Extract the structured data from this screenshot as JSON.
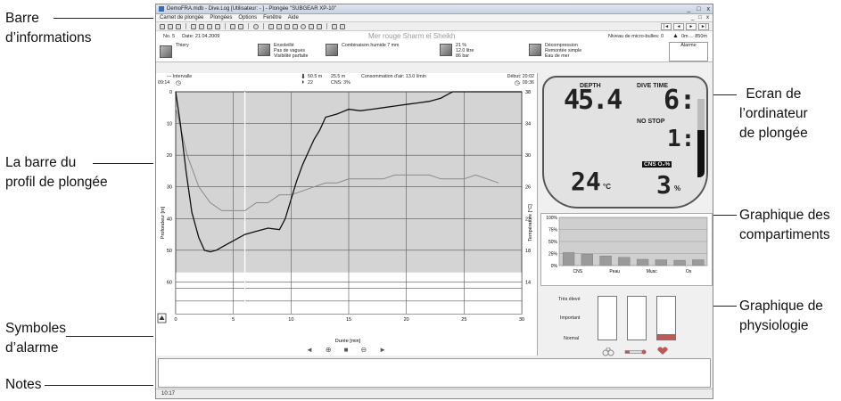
{
  "callouts": {
    "info_bar": [
      "Barre",
      "d’informations"
    ],
    "profile_bar": [
      "La barre du",
      "profil de plongée"
    ],
    "alarm_symbols": [
      "Symboles",
      "d’alarme"
    ],
    "notes": "Notes",
    "dive_computer": [
      "Ecran de",
      "l’ordinateur",
      "de plongée"
    ],
    "compartments": [
      "Graphique des",
      "compartiments"
    ],
    "physiology": [
      "Graphique de",
      "physiologie"
    ]
  },
  "window": {
    "title": "DemoFRA.mdb - Dive.Log [Utilisateur: - ] - Plongée \"SUBGEAR XP-10\"",
    "controls": [
      "_",
      "□",
      "x"
    ]
  },
  "menu": {
    "items": [
      "Carnet de plongée",
      "Plongées",
      "Options",
      "Fenêtre",
      "Aide"
    ],
    "mdi_controls": [
      "_",
      "□",
      "x"
    ]
  },
  "toolbar": {
    "nav_buttons": [
      "|◄",
      "◄",
      "►",
      "►|"
    ]
  },
  "info_bar": {
    "dive_no": "No. 5",
    "date": "Date: 21.04.2009",
    "site": "Mer rouge     Sharm el Sheikh",
    "microbubbles": "Niveau de micro-bulles: 0",
    "altitude": "0m ... 850m",
    "buddy": "Thiery",
    "conditions": [
      "Ensoleillé",
      "Pas de vagues",
      "Visibilité parfaite"
    ],
    "suit": "Combinaison humide 7 mm",
    "gas": [
      "21 %",
      "12.0 litre",
      "86 bar"
    ],
    "dive_type": [
      "Décompression",
      "Remontée simple",
      "Eau de mer"
    ],
    "alarm_label": "Alarme"
  },
  "profile": {
    "interval_label": "--- Intervalle",
    "interval_time": "09:14",
    "max_depth": "50.5 m",
    "avg_depth": "25.5 m",
    "temp_min": "22",
    "cns": "CNS:  3%",
    "air_consumption": "Consommation d'air: 13.0 l/min",
    "entry": "Début: 20:02",
    "duration": "09:36",
    "y_left_label": "Profondeur [m]",
    "y_right_label": "Température [°C]",
    "x_label": "Durée [min]",
    "controls": [
      "◄",
      "zoom-in",
      "stop",
      "zoom-out",
      "►"
    ]
  },
  "chart_data": {
    "type": "line",
    "xlabel": "Durée [min]",
    "ylabel": "Profondeur [m]",
    "y2label": "Température [°C]",
    "xlim": [
      0,
      30
    ],
    "ylim": [
      70,
      0
    ],
    "y2lim": [
      10,
      38
    ],
    "x_ticks": [
      0,
      5,
      10,
      15,
      20,
      25,
      30
    ],
    "y_ticks": [
      0,
      10,
      20,
      30,
      40,
      50,
      60
    ],
    "y2_ticks": [
      38,
      34,
      30,
      26,
      22,
      18,
      14
    ],
    "grid": true,
    "series": [
      {
        "x": [
          0,
          0.4,
          0.9,
          1.4,
          2.0,
          2.5,
          3.0,
          3.5,
          4.0,
          5.0,
          6.0,
          7.0,
          8.0,
          9.0,
          9.5,
          10.0,
          10.5,
          11.0,
          11.5,
          12.0,
          12.5,
          13.0,
          14.0,
          15.0,
          16.0,
          17.0,
          18.0,
          19.0,
          20.0,
          21.0,
          22.0,
          23.0,
          23.5,
          24.0,
          24.5,
          25.0,
          26.0,
          27.0,
          28.0,
          29.0,
          30.0
        ],
        "values": [
          0,
          10,
          25,
          38,
          46,
          50,
          50.5,
          50,
          49,
          47,
          45,
          44,
          43,
          43.5,
          40,
          34,
          28,
          23,
          19,
          15,
          12,
          8,
          7,
          5.5,
          6,
          5.5,
          5,
          4.5,
          4,
          3.5,
          3,
          2,
          1,
          0,
          0,
          0,
          0,
          0,
          0,
          0,
          0
        ]
      },
      {
        "x": [
          0,
          1,
          2,
          3,
          4,
          5,
          6,
          7,
          8,
          9,
          10,
          11,
          12,
          13,
          14,
          15,
          16,
          17,
          18,
          19,
          20,
          21,
          22,
          23,
          24,
          25,
          26,
          27,
          28
        ],
        "values": [
          36,
          30,
          26,
          24,
          23,
          23,
          23,
          24,
          24,
          25,
          25,
          25.5,
          26,
          26.5,
          26.5,
          27,
          27,
          27,
          27,
          27.5,
          27.5,
          27.5,
          27.5,
          27,
          27,
          27,
          27.5,
          27,
          26.5
        ]
      }
    ]
  },
  "dive_computer": {
    "depth_label": "DEPTH",
    "depth_value": "45.4",
    "dive_time_label": "DIVE TIME",
    "dive_time_value": "6:",
    "no_stop_label": "NO STOP",
    "no_stop_value": "1:",
    "temp_value": "24",
    "temp_unit": "°C",
    "cns_label": "CNS O₂%",
    "cns_value": "3",
    "cns_unit": "%"
  },
  "compartments": {
    "y_ticks": [
      "100%",
      "75%",
      "50%",
      "25%",
      "0%"
    ],
    "x_labels": [
      "CNS",
      "Peau",
      "Musc",
      "Os"
    ],
    "bars_percent": [
      27,
      24,
      20,
      17,
      13,
      12,
      11,
      12
    ]
  },
  "physiology": {
    "levels": [
      "Très élevé",
      "Important",
      "Normal"
    ],
    "gauges_fill_percent": [
      0,
      0,
      12
    ],
    "accent_color": "#b85a5a",
    "icons": [
      "bubbles-icon",
      "thermometer-icon",
      "heart-icon"
    ]
  },
  "status": {
    "time": "10:17"
  }
}
